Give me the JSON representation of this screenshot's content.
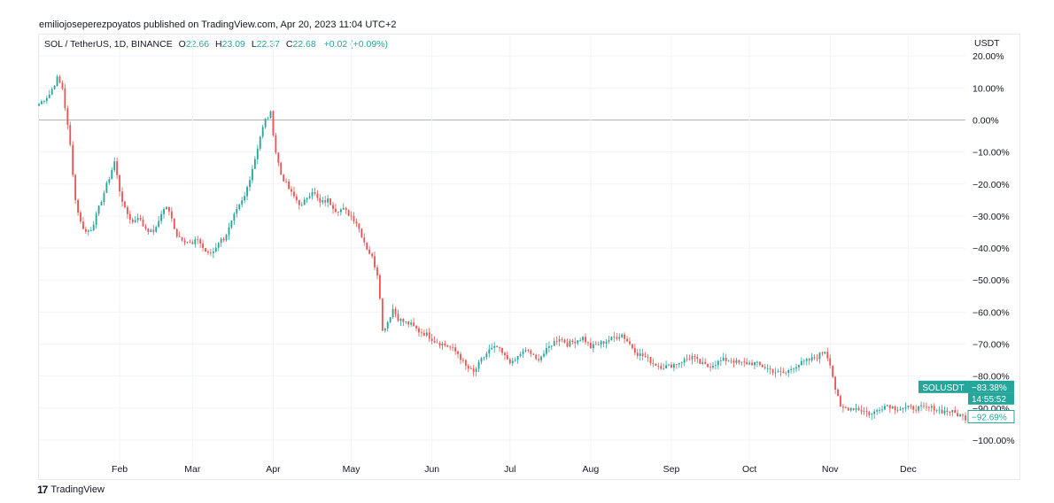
{
  "publisher": "emiliojoseperezpoyatos published on TradingView.com, Apr 20, 2023 11:04 UTC+2",
  "legend": {
    "symbol": "SOL / TetherUS, 1D, BINANCE",
    "o_label": "O",
    "o_value": "22.66",
    "h_label": "H",
    "h_value": "23.09",
    "l_label": "L",
    "l_value": "22.37",
    "c_label": "C",
    "c_value": "22.68",
    "change": "+0.02 (+0.09%)"
  },
  "footer": {
    "brand": "TradingView",
    "logo_glyph": "17"
  },
  "colors": {
    "up": "#26a69a",
    "down": "#ef5350",
    "grid": "#f0f3fa",
    "zero_line": "#b2b5be",
    "badge": "#26a69a"
  },
  "chart_data": {
    "type": "candlestick",
    "y_unit_label": "USDT",
    "y_scale": "percent",
    "ylim": [
      -105,
      22
    ],
    "y_ticks": [
      20,
      10,
      0,
      -10,
      -20,
      -30,
      -40,
      -50,
      -60,
      -70,
      -80,
      -90,
      -100
    ],
    "y_tick_labels": [
      "20.00%",
      "10.00%",
      "0.00%",
      "−10.00%",
      "−20.00%",
      "−30.00%",
      "−40.00%",
      "−50.00%",
      "−60.00%",
      "−70.00%",
      "−80.00%",
      "−90.00%",
      "−100.00%"
    ],
    "x_months": [
      "Feb",
      "Mar",
      "Apr",
      "May",
      "Jun",
      "Jul",
      "Aug",
      "Sep",
      "Oct",
      "Nov",
      "Dec"
    ],
    "month_start_day": [
      31,
      59,
      90,
      120,
      151,
      181,
      212,
      243,
      273,
      304,
      334
    ],
    "x_range_days": [
      0,
      356
    ],
    "series_anchors": [
      [
        0,
        5
      ],
      [
        4,
        8
      ],
      [
        7,
        13
      ],
      [
        9,
        10
      ],
      [
        12,
        -8
      ],
      [
        14,
        -25
      ],
      [
        16,
        -32
      ],
      [
        18,
        -35
      ],
      [
        20,
        -34
      ],
      [
        22,
        -30
      ],
      [
        24,
        -25
      ],
      [
        27,
        -18
      ],
      [
        29,
        -13
      ],
      [
        31,
        -22
      ],
      [
        33,
        -28
      ],
      [
        36,
        -32
      ],
      [
        38,
        -30
      ],
      [
        40,
        -33
      ],
      [
        43,
        -35
      ],
      [
        45,
        -34
      ],
      [
        47,
        -29
      ],
      [
        49,
        -27
      ],
      [
        51,
        -31
      ],
      [
        53,
        -36
      ],
      [
        55,
        -37
      ],
      [
        57,
        -38
      ],
      [
        59,
        -39
      ],
      [
        61,
        -37
      ],
      [
        63,
        -40
      ],
      [
        65,
        -42
      ],
      [
        67,
        -41
      ],
      [
        69,
        -38
      ],
      [
        71,
        -37
      ],
      [
        73,
        -34
      ],
      [
        75,
        -30
      ],
      [
        77,
        -27
      ],
      [
        79,
        -24
      ],
      [
        81,
        -18
      ],
      [
        83,
        -12
      ],
      [
        85,
        -5
      ],
      [
        87,
        0
      ],
      [
        89,
        2
      ],
      [
        91,
        -10
      ],
      [
        93,
        -17
      ],
      [
        95,
        -20
      ],
      [
        97,
        -23
      ],
      [
        99,
        -25
      ],
      [
        101,
        -27
      ],
      [
        103,
        -24
      ],
      [
        105,
        -22
      ],
      [
        108,
        -26
      ],
      [
        111,
        -25
      ],
      [
        114,
        -28
      ],
      [
        117,
        -28
      ],
      [
        120,
        -30
      ],
      [
        122,
        -32
      ],
      [
        124,
        -36
      ],
      [
        126,
        -40
      ],
      [
        128,
        -43
      ],
      [
        130,
        -48
      ],
      [
        131,
        -55
      ],
      [
        132,
        -66
      ],
      [
        134,
        -63
      ],
      [
        136,
        -59
      ],
      [
        138,
        -62
      ],
      [
        140,
        -63
      ],
      [
        143,
        -64
      ],
      [
        146,
        -66
      ],
      [
        149,
        -67
      ],
      [
        152,
        -69
      ],
      [
        155,
        -70
      ],
      [
        158,
        -71
      ],
      [
        161,
        -73
      ],
      [
        164,
        -77
      ],
      [
        167,
        -79
      ],
      [
        170,
        -75
      ],
      [
        173,
        -72
      ],
      [
        176,
        -71
      ],
      [
        179,
        -74
      ],
      [
        182,
        -76
      ],
      [
        185,
        -73
      ],
      [
        188,
        -72
      ],
      [
        191,
        -75
      ],
      [
        194,
        -73
      ],
      [
        197,
        -70
      ],
      [
        200,
        -68
      ],
      [
        203,
        -70
      ],
      [
        206,
        -69
      ],
      [
        209,
        -68
      ],
      [
        212,
        -71
      ],
      [
        215,
        -70
      ],
      [
        218,
        -69
      ],
      [
        221,
        -68
      ],
      [
        224,
        -67
      ],
      [
        227,
        -70
      ],
      [
        230,
        -73
      ],
      [
        233,
        -74
      ],
      [
        236,
        -76
      ],
      [
        239,
        -77
      ],
      [
        242,
        -77
      ],
      [
        245,
        -76
      ],
      [
        248,
        -75
      ],
      [
        251,
        -74
      ],
      [
        254,
        -76
      ],
      [
        257,
        -77
      ],
      [
        260,
        -76
      ],
      [
        263,
        -75
      ],
      [
        266,
        -75
      ],
      [
        269,
        -76
      ],
      [
        272,
        -76
      ],
      [
        275,
        -76
      ],
      [
        278,
        -77
      ],
      [
        281,
        -78
      ],
      [
        284,
        -79
      ],
      [
        287,
        -79
      ],
      [
        290,
        -77
      ],
      [
        293,
        -76
      ],
      [
        296,
        -75
      ],
      [
        299,
        -74
      ],
      [
        302,
        -72
      ],
      [
        304,
        -76
      ],
      [
        306,
        -84
      ],
      [
        308,
        -90
      ],
      [
        311,
        -90
      ],
      [
        314,
        -90
      ],
      [
        317,
        -91
      ],
      [
        320,
        -92
      ],
      [
        323,
        -90
      ],
      [
        326,
        -89
      ],
      [
        329,
        -90
      ],
      [
        332,
        -90
      ],
      [
        335,
        -90
      ],
      [
        338,
        -90
      ],
      [
        341,
        -90
      ],
      [
        344,
        -90
      ],
      [
        347,
        -91
      ],
      [
        350,
        -91
      ],
      [
        353,
        -92
      ],
      [
        356,
        -93
      ]
    ],
    "last_value_badge": {
      "symbol": "SOLUSDT",
      "value": "−83.38%",
      "countdown": "14:55:52",
      "y_value": -83.38
    },
    "secondary_badge": {
      "value": "−92.69%",
      "y_value": -92.69
    }
  }
}
